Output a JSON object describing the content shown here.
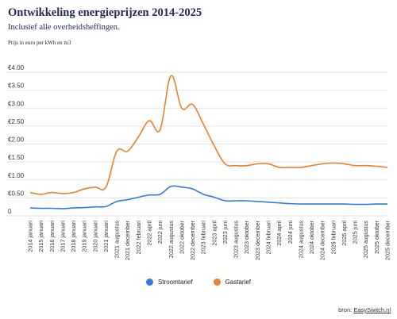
{
  "header": {
    "title": "Ontwikkeling energieprijzen 2014-2025",
    "subtitle": "Inclusief alle overheidsheffingen.",
    "unit": "Prijs in euro per kWh en m3"
  },
  "source": {
    "prefix": "bron: ",
    "link": "EasySwitch.nl"
  },
  "colors": {
    "stroom": "#2f7ae5",
    "gas": "#ec7f2c",
    "grid": "#e3e3e3"
  },
  "chart_data": {
    "type": "line",
    "ylim": [
      0,
      4.2
    ],
    "yticks": [
      0,
      0.5,
      1.0,
      1.5,
      2.0,
      2.5,
      3.0,
      3.5,
      4.0
    ],
    "ytick_labels": [
      "0",
      "€0.50",
      "€1.00",
      "€1.50",
      "€2.00",
      "€2.50",
      "€3.00",
      "€3.50",
      "€4.00"
    ],
    "categories": [
      "2014 januari",
      "2015 januari",
      "2016 januari",
      "2017 januari",
      "2018 januari",
      "2019 januari",
      "2020 januari",
      "2021 januari",
      "2021 augustus",
      "2021 december",
      "2022 februari",
      "2022 april",
      "2022 juni",
      "2022 augustus",
      "2022 oktober",
      "2022 december",
      "2023 februari",
      "2023 april",
      "2023 juni",
      "2023 augustus",
      "2023 oktober",
      "2023 december",
      "2024 februari",
      "2024 april",
      "2024 juni",
      "2024 augustus",
      "2024 oktober",
      "2024 december",
      "2025 februari",
      "2025 april",
      "2025 juni",
      "2025 augustus",
      "2025 oktober",
      "2025 december"
    ],
    "series": [
      {
        "name": "Stroomtarief",
        "values": [
          0.22,
          0.21,
          0.21,
          0.2,
          0.22,
          0.23,
          0.25,
          0.26,
          0.4,
          0.45,
          0.52,
          0.58,
          0.6,
          0.82,
          0.8,
          0.75,
          0.6,
          0.52,
          0.42,
          0.42,
          0.42,
          0.4,
          0.38,
          0.36,
          0.34,
          0.33,
          0.33,
          0.33,
          0.33,
          0.33,
          0.32,
          0.32,
          0.33,
          0.33
        ]
      },
      {
        "name": "Gastarief",
        "values": [
          0.65,
          0.6,
          0.65,
          0.62,
          0.65,
          0.75,
          0.8,
          0.8,
          1.8,
          1.8,
          2.2,
          2.65,
          2.4,
          3.9,
          3.0,
          3.1,
          2.55,
          1.95,
          1.45,
          1.4,
          1.4,
          1.45,
          1.45,
          1.35,
          1.35,
          1.35,
          1.4,
          1.45,
          1.47,
          1.45,
          1.4,
          1.4,
          1.38,
          1.35
        ]
      }
    ]
  }
}
